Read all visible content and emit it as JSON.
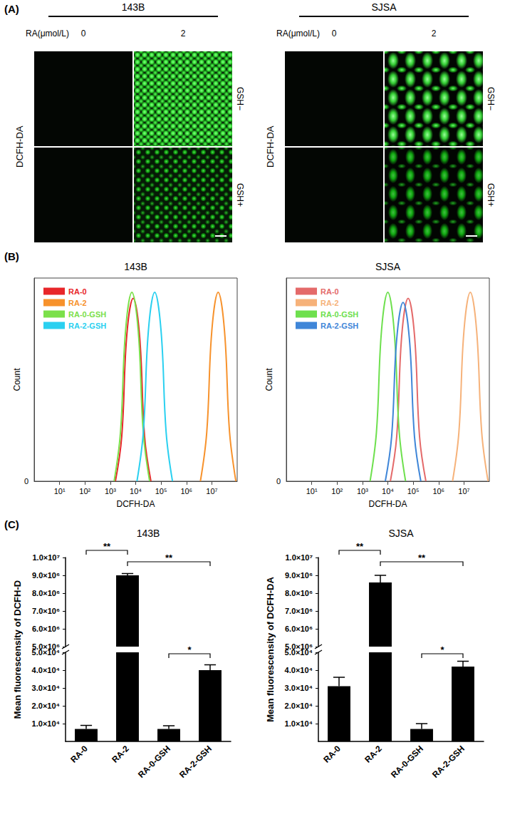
{
  "panel_labels": [
    "(A)",
    "(B)",
    "(C)"
  ],
  "panel_a": {
    "groups": [
      {
        "title": "143B",
        "axis_label": "RA(μmol/L)",
        "doses": [
          0,
          2
        ],
        "stain": "DCFH-DA",
        "conditions": [
          "GSH−",
          "GSH+"
        ]
      },
      {
        "title": "SJSA",
        "axis_label": "RA(μmol/L)",
        "doses": [
          0,
          2
        ],
        "stain": "DCFH-DA",
        "conditions": [
          "GSH−",
          "GSH+"
        ]
      }
    ]
  },
  "chart_data": [
    {
      "type": "line",
      "title": "143B",
      "x_label": "DCFH-DA",
      "y_label": "Count",
      "log": "x",
      "xlim": [
        1,
        100000000
      ],
      "xticks": [
        {
          "value": 10,
          "label": "10¹"
        },
        {
          "value": 100,
          "label": "10²"
        },
        {
          "value": 1000,
          "label": "10³"
        },
        {
          "value": 10000,
          "label": "10⁴"
        },
        {
          "value": 100000,
          "label": "10⁵"
        },
        {
          "value": 1000000,
          "label": "10⁶"
        },
        {
          "value": 10000000,
          "label": "10⁷"
        }
      ],
      "ylim": [
        0,
        1
      ],
      "yticks": [
        0
      ],
      "legend": "upper left",
      "series": [
        {
          "name": "RA-0",
          "color": "#e8262a",
          "x": [
            1585,
            2818,
            4467,
            7943,
            14125,
            22387,
            39811
          ],
          "values": [
            0,
            0.22,
            0.72,
            0.9,
            0.72,
            0.22,
            0
          ]
        },
        {
          "name": "RA-2",
          "color": "#f7922c",
          "x": [
            3548134,
            6309573,
            10000000,
            17782794,
            31622777,
            50118723,
            89125094
          ],
          "values": [
            0,
            0.24,
            0.74,
            0.93,
            0.74,
            0.24,
            0
          ]
        },
        {
          "name": "RA-0-GSH",
          "color": "#7be04a",
          "x": [
            1413,
            2512,
            3981,
            7079,
            12589,
            19953,
            35481
          ],
          "values": [
            0,
            0.24,
            0.74,
            0.93,
            0.74,
            0.24,
            0
          ]
        },
        {
          "name": "RA-2-GSH",
          "color": "#2ad0f0",
          "x": [
            11220,
            19953,
            31623,
            56234,
            100000,
            158489,
            281838
          ],
          "values": [
            0,
            0.24,
            0.74,
            0.93,
            0.74,
            0.24,
            0
          ]
        }
      ]
    },
    {
      "type": "line",
      "title": "SJSA",
      "x_label": "DCFH-DA",
      "y_label": "Count",
      "log": "x",
      "xlim": [
        1,
        100000000
      ],
      "xticks": [
        {
          "value": 10,
          "label": "10¹"
        },
        {
          "value": 100,
          "label": "10²"
        },
        {
          "value": 1000,
          "label": "10³"
        },
        {
          "value": 10000,
          "label": "10⁴"
        },
        {
          "value": 100000,
          "label": "10⁵"
        },
        {
          "value": 1000000,
          "label": "10⁶"
        },
        {
          "value": 10000000,
          "label": "10⁷"
        }
      ],
      "ylim": [
        0,
        1
      ],
      "yticks": [
        0
      ],
      "legend": "upper left",
      "series": [
        {
          "name": "RA-0",
          "color": "#e46a6a",
          "x": [
            12589,
            22387,
            35481,
            63096,
            112202,
            177828,
            316228
          ],
          "values": [
            0,
            0.22,
            0.72,
            0.9,
            0.72,
            0.22,
            0
          ]
        },
        {
          "name": "RA-2",
          "color": "#f6b27a",
          "x": [
            3548134,
            6309573,
            10000000,
            17782794,
            31622777,
            50118723,
            89125094
          ],
          "values": [
            0,
            0.24,
            0.74,
            0.93,
            0.74,
            0.24,
            0
          ]
        },
        {
          "name": "RA-0-GSH",
          "color": "#6ee04e",
          "x": [
            1995,
            3548,
            5623,
            10000,
            17783,
            28184,
            50119
          ],
          "values": [
            0,
            0.24,
            0.74,
            0.93,
            0.74,
            0.24,
            0
          ]
        },
        {
          "name": "RA-2-GSH",
          "color": "#3f86d8",
          "x": [
            7943,
            14125,
            22387,
            39811,
            70795,
            112202,
            199526
          ],
          "values": [
            0,
            0.22,
            0.7,
            0.88,
            0.7,
            0.22,
            0
          ]
        }
      ]
    },
    {
      "type": "bar",
      "title": "143B",
      "y_label": "Mean fluorescensity of DCFH-D",
      "categories": [
        "RA-0",
        "RA-2",
        "RA-0-GSH",
        "RA-2-GSH"
      ],
      "values": [
        7000,
        9000000,
        7000,
        40000
      ],
      "errors": [
        2000,
        100000,
        1800,
        3000
      ],
      "color": "#000000",
      "ylim": [
        0,
        10000000
      ],
      "y_break": [
        50000,
        5000000
      ],
      "yticks": [
        {
          "value": 10000,
          "label": "1.0×10⁴"
        },
        {
          "value": 20000,
          "label": "2.0×10⁴"
        },
        {
          "value": 30000,
          "label": "3.0×10⁴"
        },
        {
          "value": 40000,
          "label": "4.0×10⁴"
        },
        {
          "value": 50000,
          "label": "5.0×10⁴"
        },
        {
          "value": 5000000,
          "label": "5.0×10⁶"
        },
        {
          "value": 6000000,
          "label": "6.0×10⁶"
        },
        {
          "value": 7000000,
          "label": "7.0×10⁶"
        },
        {
          "value": 8000000,
          "label": "8.0×10⁶"
        },
        {
          "value": 9000000,
          "label": "9.0×10⁶"
        },
        {
          "value": 10000000,
          "label": "1.0×10⁷"
        }
      ],
      "annotations": [
        {
          "between": [
            "RA-0",
            "RA-2"
          ],
          "text": "**"
        },
        {
          "between": [
            "RA-2",
            "RA-2-GSH"
          ],
          "text": "**"
        },
        {
          "between": [
            "RA-0-GSH",
            "RA-2-GSH"
          ],
          "text": "*"
        }
      ]
    },
    {
      "type": "bar",
      "title": "SJSA",
      "y_label": "Mean fluorescensity of DCFH-DA",
      "categories": [
        "RA-0",
        "RA-2",
        "RA-0-GSH",
        "RA-2-GSH"
      ],
      "values": [
        31000,
        8600000,
        7000,
        42000
      ],
      "errors": [
        5000,
        400000,
        3000,
        3000
      ],
      "color": "#000000",
      "ylim": [
        0,
        10000000
      ],
      "y_break": [
        50000,
        5000000
      ],
      "yticks": [
        {
          "value": 10000,
          "label": "1.0×10⁴"
        },
        {
          "value": 20000,
          "label": "2.0×10⁴"
        },
        {
          "value": 30000,
          "label": "3.0×10⁴"
        },
        {
          "value": 40000,
          "label": "4.0×10⁴"
        },
        {
          "value": 50000,
          "label": "5.0×10⁴"
        },
        {
          "value": 5000000,
          "label": "5.0×10⁶"
        },
        {
          "value": 6000000,
          "label": "6.0×10⁶"
        },
        {
          "value": 7000000,
          "label": "7.0×10⁶"
        },
        {
          "value": 8000000,
          "label": "8.0×10⁶"
        },
        {
          "value": 9000000,
          "label": "9.0×10⁶"
        },
        {
          "value": 10000000,
          "label": "1.0×10⁷"
        }
      ],
      "annotations": [
        {
          "between": [
            "RA-0",
            "RA-2"
          ],
          "text": "**"
        },
        {
          "between": [
            "RA-2",
            "RA-2-GSH"
          ],
          "text": "**"
        },
        {
          "between": [
            "RA-0-GSH",
            "RA-2-GSH"
          ],
          "text": "*"
        }
      ]
    }
  ]
}
